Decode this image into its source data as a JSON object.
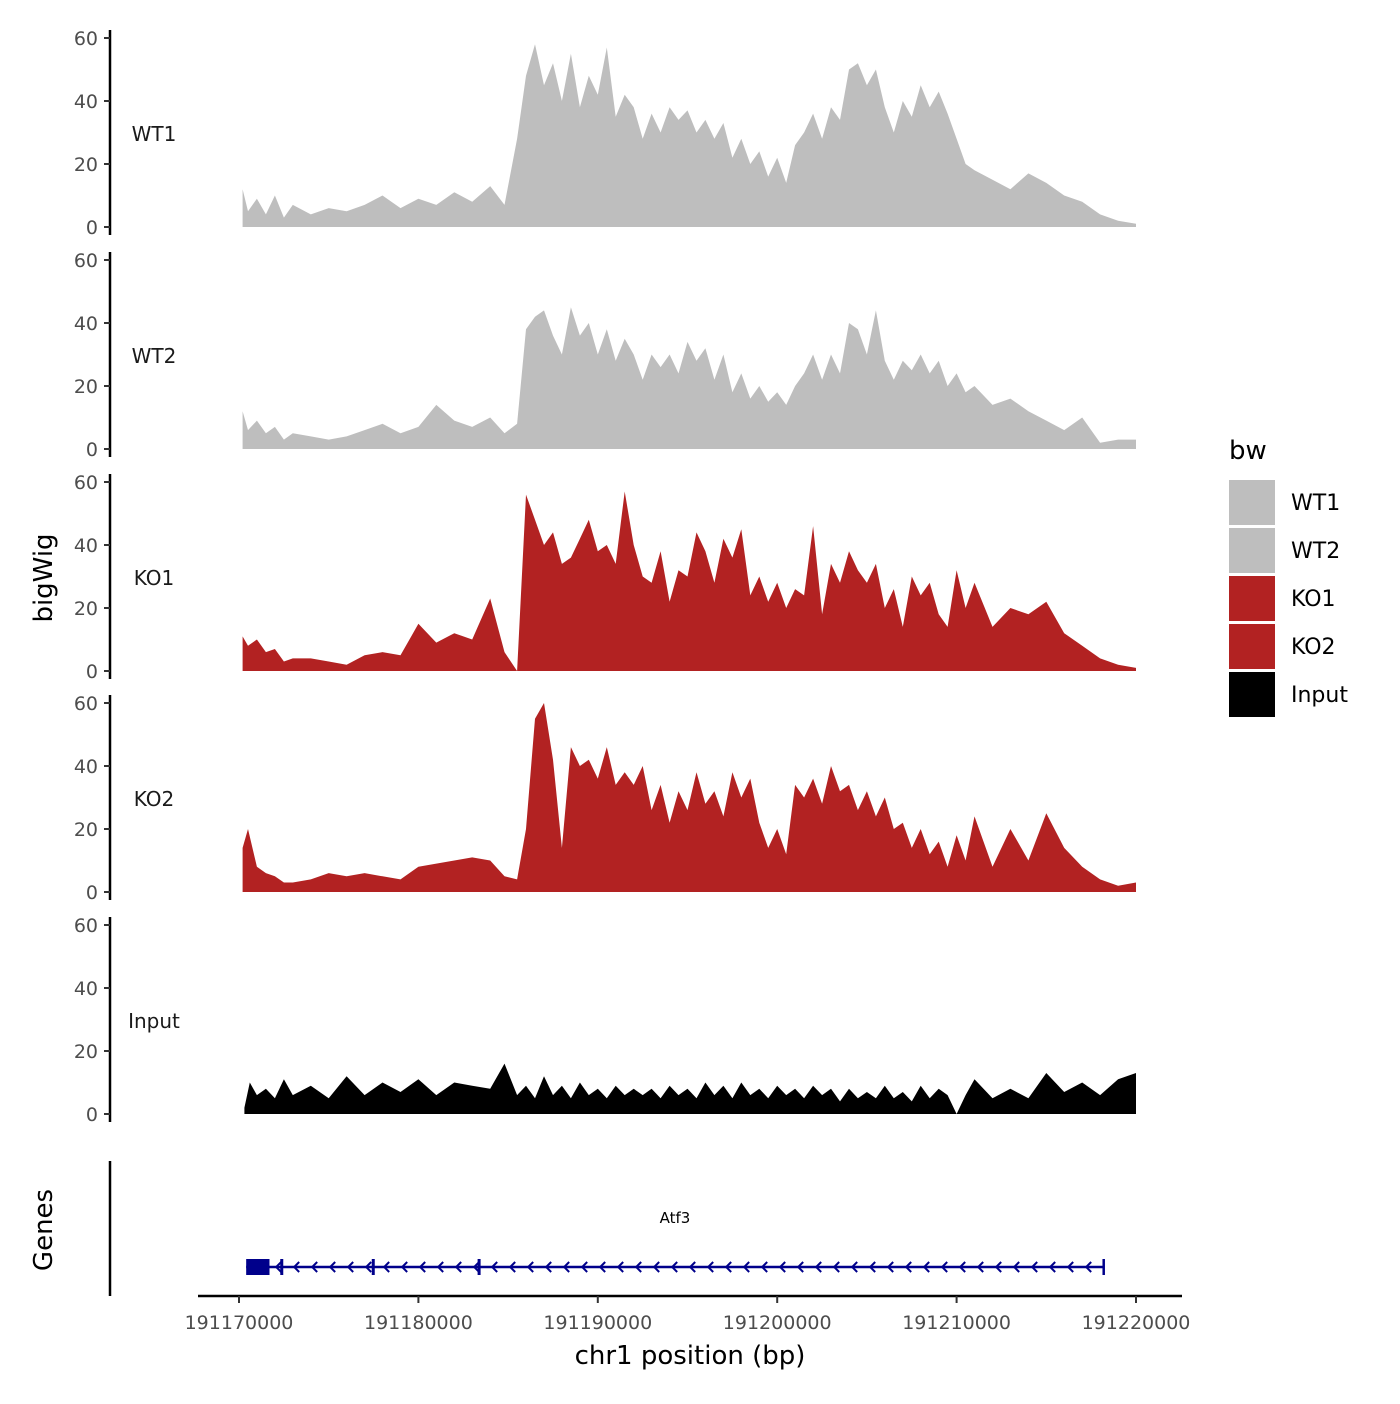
{
  "chart_data": {
    "type": "area",
    "title": "",
    "ylabel": "bigWig",
    "xlabel": "chr1 position (bp)",
    "genes_label": "Genes",
    "xlim": [
      191169000,
      191221000
    ],
    "x_ticks": [
      {
        "value": 191170000,
        "label": "191170000"
      },
      {
        "value": 191180000,
        "label": "191180000"
      },
      {
        "value": 191190000,
        "label": "191190000"
      },
      {
        "value": 191200000,
        "label": "191200000"
      },
      {
        "value": 191210000,
        "label": "191210000"
      },
      {
        "value": 191220000,
        "label": "191220000"
      }
    ],
    "ylim": [
      0,
      60
    ],
    "y_ticks": [
      {
        "value": 0,
        "label": "0"
      },
      {
        "value": 20,
        "label": "20"
      },
      {
        "value": 40,
        "label": "40"
      },
      {
        "value": 60,
        "label": "60"
      }
    ],
    "legend": {
      "title": "bw",
      "placement": "right"
    },
    "series": [
      {
        "name": "WT1",
        "color": "#bebebe",
        "x": [
          191170200,
          191170500,
          191171000,
          191171500,
          191172000,
          191172500,
          191173000,
          191174000,
          191175000,
          191176000,
          191177000,
          191178000,
          191179000,
          191180000,
          191181000,
          191182000,
          191183000,
          191184000,
          191184800,
          191185500,
          191186000,
          191186500,
          191187000,
          191187500,
          191188000,
          191188500,
          191189000,
          191189500,
          191190000,
          191190500,
          191191000,
          191191500,
          191192000,
          191192500,
          191193000,
          191193500,
          191194000,
          191194500,
          191195000,
          191195500,
          191196000,
          191196500,
          191197000,
          191197500,
          191198000,
          191198500,
          191199000,
          191199500,
          191200000,
          191200500,
          191201000,
          191201500,
          191202000,
          191202500,
          191203000,
          191203500,
          191204000,
          191204500,
          191205000,
          191205500,
          191206000,
          191206500,
          191207000,
          191207500,
          191208000,
          191208500,
          191209000,
          191209500,
          191210000,
          191210500,
          191211000,
          191212000,
          191213000,
          191214000,
          191215000,
          191216000,
          191217000,
          191218000,
          191219000,
          191220000
        ],
        "values": [
          12,
          5,
          9,
          4,
          10,
          3,
          7,
          4,
          6,
          5,
          7,
          10,
          6,
          9,
          7,
          11,
          8,
          13,
          7,
          28,
          48,
          58,
          45,
          52,
          40,
          55,
          38,
          48,
          42,
          57,
          35,
          42,
          38,
          28,
          36,
          30,
          38,
          34,
          37,
          30,
          34,
          28,
          33,
          22,
          28,
          20,
          24,
          16,
          22,
          14,
          26,
          30,
          36,
          28,
          38,
          34,
          50,
          52,
          45,
          50,
          38,
          30,
          40,
          35,
          45,
          38,
          43,
          36,
          28,
          20,
          18,
          15,
          12,
          17,
          14,
          10,
          8,
          4,
          2,
          1
        ]
      },
      {
        "name": "WT2",
        "color": "#bebebe",
        "x": [
          191170200,
          191170500,
          191171000,
          191171500,
          191172000,
          191172500,
          191173000,
          191174000,
          191175000,
          191176000,
          191177000,
          191178000,
          191179000,
          191180000,
          191181000,
          191182000,
          191183000,
          191184000,
          191184800,
          191185500,
          191186000,
          191186500,
          191187000,
          191187500,
          191188000,
          191188500,
          191189000,
          191189500,
          191190000,
          191190500,
          191191000,
          191191500,
          191192000,
          191192500,
          191193000,
          191193500,
          191194000,
          191194500,
          191195000,
          191195500,
          191196000,
          191196500,
          191197000,
          191197500,
          191198000,
          191198500,
          191199000,
          191199500,
          191200000,
          191200500,
          191201000,
          191201500,
          191202000,
          191202500,
          191203000,
          191203500,
          191204000,
          191204500,
          191205000,
          191205500,
          191206000,
          191206500,
          191207000,
          191207500,
          191208000,
          191208500,
          191209000,
          191209500,
          191210000,
          191210500,
          191211000,
          191212000,
          191213000,
          191214000,
          191215000,
          191216000,
          191217000,
          191218000,
          191219000,
          191220000
        ],
        "values": [
          12,
          6,
          9,
          5,
          7,
          3,
          5,
          4,
          3,
          4,
          6,
          8,
          5,
          7,
          14,
          9,
          7,
          10,
          5,
          8,
          38,
          42,
          44,
          36,
          30,
          45,
          36,
          40,
          30,
          38,
          28,
          35,
          30,
          22,
          30,
          26,
          30,
          24,
          34,
          28,
          32,
          22,
          30,
          18,
          24,
          16,
          20,
          15,
          18,
          14,
          20,
          24,
          30,
          22,
          30,
          24,
          40,
          38,
          30,
          44,
          28,
          22,
          28,
          25,
          30,
          24,
          28,
          20,
          24,
          18,
          20,
          14,
          16,
          12,
          9,
          6,
          10,
          2,
          3,
          3
        ]
      },
      {
        "name": "KO1",
        "color": "#b22222",
        "x": [
          191170200,
          191170500,
          191171000,
          191171500,
          191172000,
          191172500,
          191173000,
          191174000,
          191175000,
          191176000,
          191177000,
          191178000,
          191179000,
          191180000,
          191181000,
          191182000,
          191183000,
          191184000,
          191184800,
          191185500,
          191186000,
          191186500,
          191187000,
          191187500,
          191188000,
          191188500,
          191189000,
          191189500,
          191190000,
          191190500,
          191191000,
          191191500,
          191192000,
          191192500,
          191193000,
          191193500,
          191194000,
          191194500,
          191195000,
          191195500,
          191196000,
          191196500,
          191197000,
          191197500,
          191198000,
          191198500,
          191199000,
          191199500,
          191200000,
          191200500,
          191201000,
          191201500,
          191202000,
          191202500,
          191203000,
          191203500,
          191204000,
          191204500,
          191205000,
          191205500,
          191206000,
          191206500,
          191207000,
          191207500,
          191208000,
          191208500,
          191209000,
          191209500,
          191210000,
          191210500,
          191211000,
          191212000,
          191213000,
          191214000,
          191215000,
          191216000,
          191217000,
          191218000,
          191219000,
          191220000
        ],
        "values": [
          11,
          8,
          10,
          6,
          7,
          3,
          4,
          4,
          3,
          2,
          5,
          6,
          5,
          15,
          9,
          12,
          10,
          23,
          6,
          0,
          56,
          48,
          40,
          44,
          34,
          36,
          42,
          48,
          38,
          40,
          34,
          57,
          40,
          30,
          28,
          38,
          22,
          32,
          30,
          44,
          38,
          28,
          42,
          36,
          45,
          24,
          30,
          22,
          28,
          20,
          26,
          24,
          46,
          18,
          34,
          28,
          38,
          32,
          28,
          34,
          20,
          26,
          14,
          30,
          24,
          28,
          18,
          14,
          32,
          20,
          28,
          14,
          20,
          18,
          22,
          12,
          8,
          4,
          2,
          1
        ]
      },
      {
        "name": "KO2",
        "color": "#b22222",
        "x": [
          191170200,
          191170500,
          191171000,
          191171500,
          191172000,
          191172500,
          191173000,
          191174000,
          191175000,
          191176000,
          191177000,
          191178000,
          191179000,
          191180000,
          191181000,
          191182000,
          191183000,
          191184000,
          191184800,
          191185500,
          191186000,
          191186500,
          191187000,
          191187500,
          191188000,
          191188500,
          191189000,
          191189500,
          191190000,
          191190500,
          191191000,
          191191500,
          191192000,
          191192500,
          191193000,
          191193500,
          191194000,
          191194500,
          191195000,
          191195500,
          191196000,
          191196500,
          191197000,
          191197500,
          191198000,
          191198500,
          191199000,
          191199500,
          191200000,
          191200500,
          191201000,
          191201500,
          191202000,
          191202500,
          191203000,
          191203500,
          191204000,
          191204500,
          191205000,
          191205500,
          191206000,
          191206500,
          191207000,
          191207500,
          191208000,
          191208500,
          191209000,
          191209500,
          191210000,
          191210500,
          191211000,
          191212000,
          191213000,
          191214000,
          191215000,
          191216000,
          191217000,
          191218000,
          191219000,
          191220000
        ],
        "values": [
          14,
          20,
          8,
          6,
          5,
          3,
          3,
          4,
          6,
          5,
          6,
          5,
          4,
          8,
          9,
          10,
          11,
          10,
          5,
          4,
          20,
          55,
          60,
          42,
          14,
          46,
          40,
          42,
          36,
          46,
          34,
          38,
          34,
          40,
          26,
          34,
          22,
          32,
          26,
          38,
          28,
          32,
          24,
          38,
          30,
          36,
          22,
          14,
          20,
          12,
          34,
          30,
          36,
          28,
          40,
          32,
          34,
          26,
          32,
          24,
          30,
          20,
          22,
          14,
          20,
          12,
          16,
          8,
          18,
          10,
          24,
          8,
          20,
          10,
          25,
          14,
          8,
          4,
          2,
          3
        ]
      },
      {
        "name": "Input",
        "color": "#000000",
        "x": [
          191170300,
          191170600,
          191171000,
          191171500,
          191172000,
          191172500,
          191173000,
          191174000,
          191175000,
          191176000,
          191177000,
          191178000,
          191179000,
          191180000,
          191181000,
          191182000,
          191183000,
          191184000,
          191184800,
          191185500,
          191186000,
          191186500,
          191187000,
          191187500,
          191188000,
          191188500,
          191189000,
          191189500,
          191190000,
          191190500,
          191191000,
          191191500,
          191192000,
          191192500,
          191193000,
          191193500,
          191194000,
          191194500,
          191195000,
          191195500,
          191196000,
          191196500,
          191197000,
          191197500,
          191198000,
          191198500,
          191199000,
          191199500,
          191200000,
          191200500,
          191201000,
          191201500,
          191202000,
          191202500,
          191203000,
          191203500,
          191204000,
          191204500,
          191205000,
          191205500,
          191206000,
          191206500,
          191207000,
          191207500,
          191208000,
          191208500,
          191209000,
          191209500,
          191210000,
          191210500,
          191211000,
          191212000,
          191213000,
          191214000,
          191215000,
          191216000,
          191217000,
          191218000,
          191219000,
          191220000
        ],
        "values": [
          2,
          10,
          6,
          8,
          5,
          11,
          6,
          9,
          5,
          12,
          6,
          10,
          7,
          11,
          6,
          10,
          9,
          8,
          16,
          6,
          9,
          5,
          12,
          6,
          9,
          5,
          10,
          6,
          8,
          5,
          9,
          6,
          8,
          6,
          8,
          5,
          9,
          6,
          8,
          5,
          10,
          6,
          9,
          5,
          10,
          6,
          8,
          5,
          9,
          6,
          8,
          5,
          9,
          6,
          8,
          4,
          8,
          5,
          7,
          5,
          9,
          5,
          7,
          4,
          9,
          5,
          8,
          6,
          0,
          6,
          11,
          5,
          8,
          5,
          13,
          7,
          10,
          6,
          11,
          13
        ]
      }
    ],
    "genes": [
      {
        "name": "Atf3",
        "color": "#00008b",
        "strand": "-",
        "start": 191170400,
        "end": 191218200,
        "exons": [
          [
            191170400,
            191171700
          ],
          [
            191172300,
            191172450
          ],
          [
            191177400,
            191177550
          ],
          [
            191183300,
            191183450
          ]
        ]
      }
    ]
  }
}
